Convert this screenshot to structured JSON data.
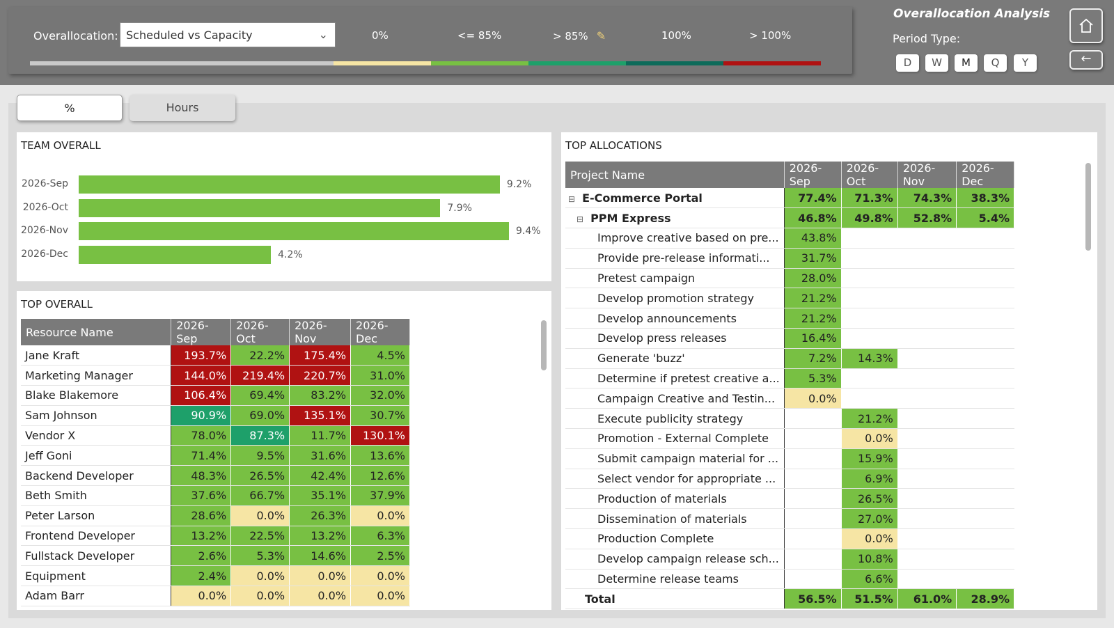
{
  "header": {
    "overallocation_label": "Overallocation:",
    "overallocation_value": "Scheduled vs Capacity",
    "legend": [
      {
        "label": "0%",
        "color": "#c9c9c9"
      },
      {
        "label": "<= 85%",
        "color": "#f6e5a4"
      },
      {
        "label": "> 85%",
        "color": "#78c043"
      },
      {
        "label": "100%",
        "color": "#1ea06a"
      },
      {
        "label": "> 100%",
        "color": "#0d6b5a"
      }
    ],
    "legend_bar_last_color": "#b01212",
    "app_title": "Overallocation Analysis",
    "period_label": "Period Type:",
    "period_options": [
      "D",
      "W",
      "M",
      "Q",
      "Y"
    ],
    "period_selected": "M",
    "home_icon": "home-icon",
    "back_icon": "back-arrow-icon"
  },
  "tabs": [
    {
      "label": "%",
      "active": true
    },
    {
      "label": "Hours",
      "active": false
    }
  ],
  "team_overall": {
    "title": "TEAM OVERALL",
    "chart_data": {
      "type": "bar",
      "orientation": "horizontal",
      "categories": [
        "2026-Sep",
        "2026-Oct",
        "2026-Nov",
        "2026-Dec"
      ],
      "values": [
        9.2,
        7.9,
        9.4,
        4.2
      ],
      "value_labels": [
        "9.2%",
        "7.9%",
        "9.4%",
        "4.2%"
      ],
      "xlim": [
        0,
        9.4
      ]
    }
  },
  "top_overall": {
    "title": "TOP OVERALL",
    "columns": [
      "Resource Name",
      "2026-Sep",
      "2026-Oct",
      "2026-Nov",
      "2026-Dec"
    ],
    "rows": [
      [
        "Jane Kraft",
        "193.7%",
        "22.2%",
        "175.4%",
        "4.5%"
      ],
      [
        "Marketing Manager",
        "144.0%",
        "219.4%",
        "220.7%",
        "31.0%"
      ],
      [
        "Blake Blakemore",
        "106.4%",
        "69.4%",
        "83.2%",
        "32.0%"
      ],
      [
        "Sam Johnson",
        "90.9%",
        "69.0%",
        "135.1%",
        "30.7%"
      ],
      [
        "Vendor X",
        "78.0%",
        "87.3%",
        "11.7%",
        "130.1%"
      ],
      [
        "Jeff Goni",
        "71.4%",
        "9.5%",
        "31.6%",
        "13.6%"
      ],
      [
        "Backend Developer",
        "48.3%",
        "26.5%",
        "42.4%",
        "12.6%"
      ],
      [
        "Beth Smith",
        "37.6%",
        "66.7%",
        "35.1%",
        "37.9%"
      ],
      [
        "Peter Larson",
        "28.6%",
        "0.0%",
        "26.3%",
        "0.0%"
      ],
      [
        "Frontend Developer",
        "13.2%",
        "22.5%",
        "13.2%",
        "6.3%"
      ],
      [
        "Fullstack Developer",
        "2.6%",
        "5.3%",
        "14.6%",
        "2.5%"
      ],
      [
        "Equipment",
        "2.4%",
        "0.0%",
        "0.0%",
        "0.0%"
      ],
      [
        "Adam Barr",
        "0.0%",
        "0.0%",
        "0.0%",
        "0.0%"
      ]
    ]
  },
  "top_allocations": {
    "title": "TOP ALLOCATIONS",
    "columns": [
      "Project Name",
      "2026-Sep",
      "2026-Oct",
      "2026-Nov",
      "2026-Dec"
    ],
    "rows": [
      {
        "name": "E-Commerce Portal",
        "level": 0,
        "expander": "⊟",
        "bold": true,
        "values": [
          "77.4%",
          "71.3%",
          "74.3%",
          "38.3%"
        ]
      },
      {
        "name": "PPM Express",
        "level": 1,
        "expander": "⊟",
        "bold": true,
        "values": [
          "46.8%",
          "49.8%",
          "52.8%",
          "5.4%"
        ]
      },
      {
        "name": "Improve creative based on pre...",
        "level": 2,
        "values": [
          "43.8%",
          "",
          "",
          ""
        ]
      },
      {
        "name": "Provide pre-release informati...",
        "level": 2,
        "values": [
          "31.7%",
          "",
          "",
          ""
        ]
      },
      {
        "name": "Pretest campaign",
        "level": 2,
        "values": [
          "28.0%",
          "",
          "",
          ""
        ]
      },
      {
        "name": "Develop promotion strategy",
        "level": 2,
        "values": [
          "21.2%",
          "",
          "",
          ""
        ]
      },
      {
        "name": "Develop announcements",
        "level": 2,
        "values": [
          "21.2%",
          "",
          "",
          ""
        ]
      },
      {
        "name": "Develop press releases",
        "level": 2,
        "values": [
          "16.4%",
          "",
          "",
          ""
        ]
      },
      {
        "name": "Generate 'buzz'",
        "level": 2,
        "values": [
          "7.2%",
          "14.3%",
          "",
          ""
        ]
      },
      {
        "name": "Determine if pretest creative a...",
        "level": 2,
        "values": [
          "5.3%",
          "",
          "",
          ""
        ]
      },
      {
        "name": "Campaign Creative and Testin...",
        "level": 2,
        "values": [
          "0.0%",
          "",
          "",
          ""
        ]
      },
      {
        "name": "Execute publicity strategy",
        "level": 2,
        "values": [
          "",
          "21.2%",
          "",
          ""
        ]
      },
      {
        "name": "Promotion - External Complete",
        "level": 2,
        "values": [
          "",
          "0.0%",
          "",
          ""
        ]
      },
      {
        "name": "Submit campaign material for ...",
        "level": 2,
        "values": [
          "",
          "15.9%",
          "",
          ""
        ]
      },
      {
        "name": "Select vendor for appropriate ...",
        "level": 2,
        "values": [
          "",
          "6.9%",
          "",
          ""
        ]
      },
      {
        "name": "Production of materials",
        "level": 2,
        "values": [
          "",
          "26.5%",
          "",
          ""
        ]
      },
      {
        "name": "Dissemination of materials",
        "level": 2,
        "values": [
          "",
          "27.0%",
          "",
          ""
        ]
      },
      {
        "name": "Production Complete",
        "level": 2,
        "values": [
          "",
          "0.0%",
          "",
          ""
        ]
      },
      {
        "name": "Develop campaign release sch...",
        "level": 2,
        "values": [
          "",
          "10.8%",
          "",
          ""
        ]
      },
      {
        "name": "Determine release teams",
        "level": 2,
        "values": [
          "",
          "6.6%",
          "",
          ""
        ]
      }
    ],
    "total": {
      "name": "Total",
      "values": [
        "56.5%",
        "51.5%",
        "61.0%",
        "28.9%"
      ]
    }
  }
}
